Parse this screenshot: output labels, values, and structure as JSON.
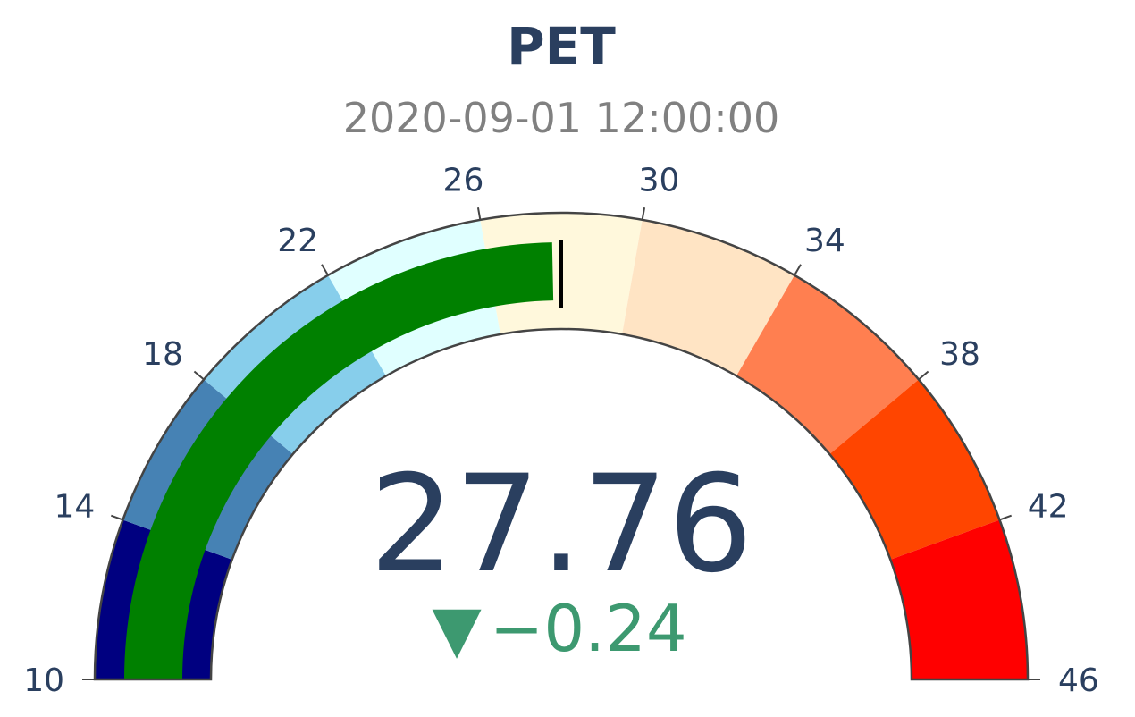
{
  "chart_data": {
    "type": "gauge",
    "title": "PET",
    "subtitle": "2020-09-01 12:00:00",
    "value": 27.76,
    "value_text": "27.76",
    "delta": -0.24,
    "delta_text": "−0.24",
    "delta_symbol": "▼",
    "delta_color": "#3d9970",
    "range": [
      10,
      46
    ],
    "tick_values": [
      10,
      14,
      18,
      22,
      26,
      30,
      34,
      38,
      42,
      46
    ],
    "tick_labels": [
      "10",
      "14",
      "18",
      "22",
      "26",
      "30",
      "34",
      "38",
      "42",
      "46"
    ],
    "bar_color": "#008000",
    "threshold": 28,
    "threshold_color": "#000000",
    "steps": [
      {
        "range": [
          10,
          14
        ],
        "color": "#000080"
      },
      {
        "range": [
          14,
          18
        ],
        "color": "#4682b4"
      },
      {
        "range": [
          18,
          22
        ],
        "color": "#87ceeb"
      },
      {
        "range": [
          22,
          26
        ],
        "color": "#e0ffff"
      },
      {
        "range": [
          26,
          30
        ],
        "color": "#fff8dc"
      },
      {
        "range": [
          30,
          34
        ],
        "color": "#ffe4c4"
      },
      {
        "range": [
          34,
          38
        ],
        "color": "#ff7f50"
      },
      {
        "range": [
          38,
          42
        ],
        "color": "#ff4500"
      },
      {
        "range": [
          42,
          46
        ],
        "color": "#ff0000"
      }
    ]
  }
}
